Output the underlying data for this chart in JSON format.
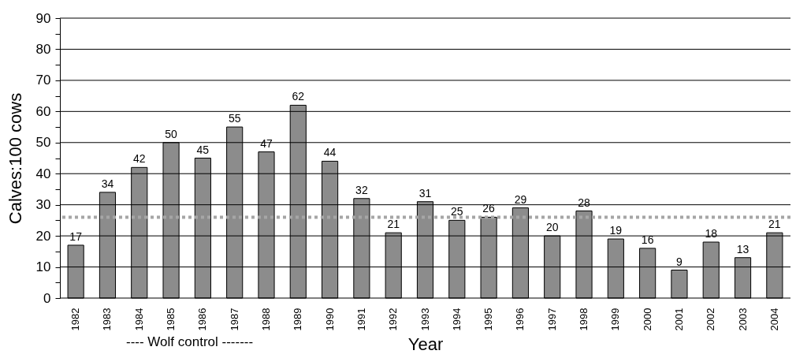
{
  "chart_data": {
    "type": "bar",
    "categories": [
      "1982",
      "1983",
      "1984",
      "1985",
      "1986",
      "1987",
      "1988",
      "1989",
      "1990",
      "1991",
      "1992",
      "1993",
      "1994",
      "1995",
      "1996",
      "1997",
      "1998",
      "1999",
      "2000",
      "2001",
      "2002",
      "2003",
      "2004"
    ],
    "values": [
      17,
      34,
      42,
      50,
      45,
      55,
      47,
      62,
      44,
      32,
      21,
      31,
      25,
      26,
      29,
      20,
      28,
      19,
      16,
      9,
      18,
      13,
      21
    ],
    "color": "#8c8c8c",
    "xlabel": "Year",
    "ylabel": "Calves:100 cows",
    "ylim": [
      0,
      90
    ],
    "yticks": [
      0,
      {
        "value": 5,
        "label": null
      },
      10,
      {
        "value": 15,
        "label": null
      },
      20,
      {
        "value": 25,
        "label": null
      },
      30,
      {
        "value": 35,
        "label": null
      },
      40,
      {
        "value": 45,
        "label": null
      },
      50,
      {
        "value": 55,
        "label": null
      },
      60,
      {
        "value": 65,
        "label": null
      },
      70,
      {
        "value": 75,
        "label": null
      },
      80,
      {
        "value": 85,
        "label": null
      },
      90
    ],
    "grid": "y",
    "data_labels": true,
    "ref_lines": [
      {
        "axis": "y",
        "value": 26,
        "color": "#a6a6a6",
        "line_style": "dotted"
      }
    ],
    "annotations": [
      "---- Wolf control -------"
    ]
  }
}
